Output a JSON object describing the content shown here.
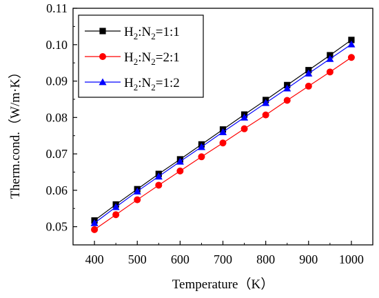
{
  "chart_data": {
    "type": "line",
    "xlabel": "Temperature（K）",
    "ylabel": "Therm.cond.（W/m·K）",
    "xlim": [
      350,
      1050
    ],
    "ylim": [
      0.045,
      0.11
    ],
    "x_ticks": [
      "400",
      "500",
      "600",
      "700",
      "800",
      "900",
      "1000"
    ],
    "y_ticks": [
      "0.05",
      "0.06",
      "0.07",
      "0.08",
      "0.09",
      "0.10",
      "0.11"
    ],
    "x": [
      400,
      450,
      500,
      550,
      600,
      650,
      700,
      750,
      800,
      850,
      900,
      950,
      1000
    ],
    "series": [
      {
        "name": "H2:N2=1:1",
        "legend": {
          "a": "H",
          "a_sub": "2",
          "b": ":N",
          "b_sub": "2",
          "c": "=1:1"
        },
        "color": "#000000",
        "marker": "square",
        "values": [
          0.0517,
          0.0561,
          0.0603,
          0.0645,
          0.0685,
          0.0726,
          0.0767,
          0.0808,
          0.0848,
          0.0889,
          0.093,
          0.0971,
          0.1013
        ]
      },
      {
        "name": "H2:N2=2:1",
        "legend": {
          "a": "H",
          "a_sub": "2",
          "b": ":N",
          "b_sub": "2",
          "c": "=2:1"
        },
        "color": "#ff0000",
        "marker": "circle",
        "values": [
          0.0492,
          0.0533,
          0.0574,
          0.0614,
          0.0653,
          0.0692,
          0.073,
          0.0769,
          0.0807,
          0.0847,
          0.0886,
          0.0925,
          0.0965
        ]
      },
      {
        "name": "H2:N2=1:2",
        "legend": {
          "a": "H",
          "a_sub": "2",
          "b": ":N",
          "b_sub": "2",
          "c": "=1:2"
        },
        "color": "#0000ff",
        "marker": "triangle",
        "values": [
          0.051,
          0.0554,
          0.0597,
          0.0638,
          0.0679,
          0.0719,
          0.076,
          0.08,
          0.084,
          0.088,
          0.0921,
          0.0961,
          0.1001
        ]
      }
    ],
    "legend_position": "top-left",
    "grid": false
  }
}
